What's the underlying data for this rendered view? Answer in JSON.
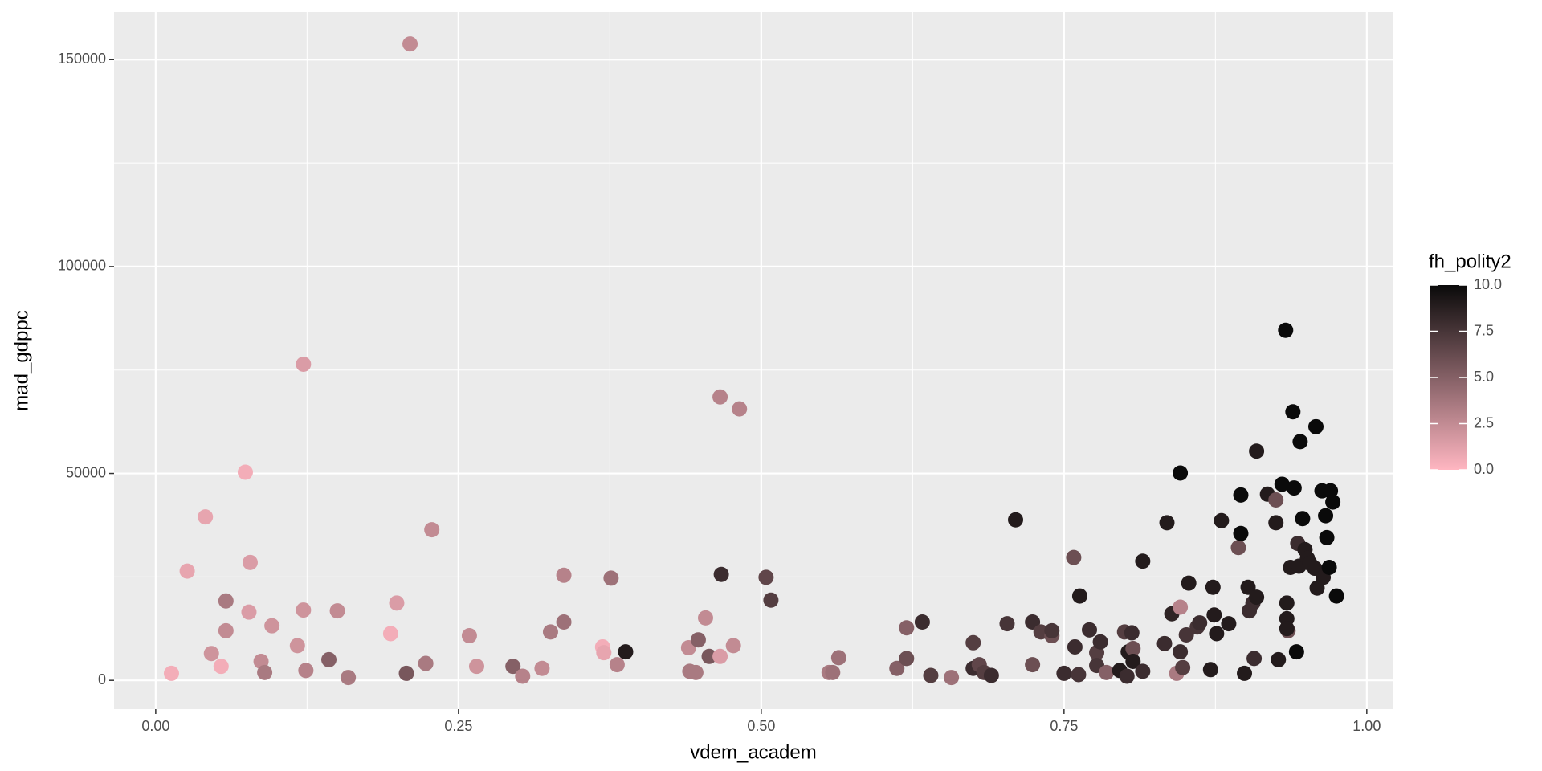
{
  "chart_data": {
    "type": "scatter",
    "x_label": "vdem_academ",
    "y_label": "mad_gdppc",
    "legend_title": "fh_polity2",
    "x": [
      0.013,
      0.026,
      0.041,
      0.046,
      0.054,
      0.058,
      0.058,
      0.074,
      0.078,
      0.077,
      0.087,
      0.09,
      0.096,
      0.117,
      0.122,
      0.122,
      0.124,
      0.143,
      0.15,
      0.159,
      0.194,
      0.199,
      0.207,
      0.21,
      0.223,
      0.228,
      0.259,
      0.265,
      0.295,
      0.303,
      0.319,
      0.326,
      0.337,
      0.337,
      0.369,
      0.37,
      0.376,
      0.381,
      0.388,
      0.44,
      0.441,
      0.446,
      0.448,
      0.454,
      0.457,
      0.466,
      0.466,
      0.467,
      0.477,
      0.482,
      0.504,
      0.508,
      0.556,
      0.559,
      0.564,
      0.612,
      0.62,
      0.62,
      0.633,
      0.64,
      0.657,
      0.675,
      0.675,
      0.68,
      0.684,
      0.69,
      0.703,
      0.71,
      0.724,
      0.724,
      0.731,
      0.74,
      0.74,
      0.75,
      0.758,
      0.759,
      0.762,
      0.763,
      0.771,
      0.777,
      0.78,
      0.777,
      0.785,
      0.796,
      0.8,
      0.802,
      0.803,
      0.806,
      0.807,
      0.807,
      0.815,
      0.815,
      0.833,
      0.835,
      0.839,
      0.843,
      0.846,
      0.846,
      0.846,
      0.848,
      0.851,
      0.853,
      0.86,
      0.862,
      0.871,
      0.873,
      0.874,
      0.876,
      0.88,
      0.886,
      0.894,
      0.896,
      0.896,
      0.899,
      0.902,
      0.903,
      0.906,
      0.907,
      0.909,
      0.909,
      0.918,
      0.925,
      0.925,
      0.927,
      0.93,
      0.933,
      0.934,
      0.934,
      0.935,
      0.934,
      0.937,
      0.939,
      0.94,
      0.942,
      0.943,
      0.944,
      0.945,
      0.947,
      0.949,
      0.951,
      0.953,
      0.957,
      0.958,
      0.959,
      0.963,
      0.964,
      0.966,
      0.967,
      0.969,
      0.97,
      0.972,
      0.975
    ],
    "values": [
      1700,
      26400,
      39500,
      6500,
      3400,
      19200,
      12000,
      50300,
      28500,
      16500,
      4600,
      1900,
      13200,
      8400,
      76400,
      17000,
      2400,
      5000,
      16800,
      700,
      11300,
      18700,
      1700,
      153800,
      4100,
      36400,
      10800,
      3400,
      3400,
      1000,
      2900,
      11700,
      14100,
      25400,
      8100,
      6700,
      24700,
      3800,
      6900,
      7900,
      2200,
      1900,
      9800,
      15100,
      5800,
      5800,
      68500,
      25600,
      8400,
      65600,
      24900,
      19400,
      1900,
      1900,
      5500,
      2900,
      5300,
      12700,
      14100,
      1200,
      700,
      2900,
      9100,
      3800,
      1900,
      1200,
      13700,
      38800,
      3800,
      14100,
      11700,
      10800,
      12000,
      1700,
      29700,
      8100,
      1400,
      20400,
      12200,
      6700,
      9300,
      3600,
      1900,
      2400,
      11700,
      1000,
      6900,
      11500,
      7700,
      4600,
      28800,
      2200,
      8900,
      38100,
      16100,
      1700,
      17700,
      6900,
      50100,
      3100,
      11000,
      23500,
      12900,
      13900,
      2600,
      22500,
      15800,
      11300,
      38600,
      13700,
      32100,
      35500,
      44800,
      1700,
      22500,
      16800,
      18700,
      5300,
      20100,
      55400,
      45000,
      43600,
      38100,
      5000,
      47400,
      84600,
      18700,
      14900,
      12000,
      12500,
      27300,
      64900,
      46500,
      6900,
      33100,
      27600,
      57700,
      39100,
      31600,
      29500,
      28300,
      27100,
      61300,
      22300,
      45800,
      24900,
      39800,
      34500,
      27300,
      45800,
      43100,
      20400
    ],
    "fill_values": [
      0.5,
      1,
      1,
      2,
      0.5,
      3.5,
      2.5,
      0.5,
      1.5,
      1.5,
      2.5,
      3.5,
      2,
      2,
      1.5,
      2,
      3,
      5,
      2.5,
      3.5,
      0.5,
      1.5,
      5.5,
      2.5,
      3.5,
      2.5,
      2.5,
      2,
      5,
      3,
      2.5,
      3.5,
      4,
      3,
      0.5,
      1,
      4,
      3,
      9,
      2.5,
      3.5,
      3.5,
      5,
      2.5,
      5.5,
      1.5,
      3,
      8,
      2.5,
      3,
      6.5,
      7,
      3.5,
      4,
      4,
      5,
      6,
      5,
      8,
      7,
      4,
      8,
      7,
      6.5,
      7,
      8,
      7.5,
      9,
      6,
      8,
      7,
      6,
      7.5,
      8,
      6,
      8,
      7.5,
      9,
      8,
      7,
      8,
      7.5,
      5,
      9,
      7,
      8,
      9,
      8,
      6,
      9,
      9,
      8,
      8,
      9,
      8.5,
      3.5,
      3,
      8,
      10,
      7,
      7.5,
      9,
      7.5,
      8,
      9,
      9,
      9,
      9,
      9,
      9,
      6,
      10,
      10,
      9,
      9,
      8,
      8,
      8,
      9,
      9,
      9,
      6,
      9,
      9,
      10,
      10,
      9,
      9,
      6,
      9,
      9,
      10,
      10,
      10,
      8,
      9,
      10,
      10,
      9,
      9,
      9,
      9,
      10,
      9,
      10,
      9,
      10,
      10,
      10,
      10,
      10,
      10
    ],
    "color_low": "#ffb6c1",
    "color_high": "#0a0a0a",
    "xlim": [
      -0.0344,
      1.022
    ],
    "ylim": [
      -6950,
      161500
    ],
    "clim": [
      0,
      10
    ],
    "xticks": [
      {
        "value": 0,
        "label": "0.00"
      },
      {
        "value": 0.25,
        "label": "0.25"
      },
      {
        "value": 0.5,
        "label": "0.50"
      },
      {
        "value": 0.75,
        "label": "0.75"
      },
      {
        "value": 1,
        "label": "1.00"
      }
    ],
    "yticks": [
      0,
      50000,
      100000,
      150000
    ],
    "cticks": [
      {
        "value": 0,
        "label": "0.0"
      },
      {
        "value": 2.5,
        "label": "2.5"
      },
      {
        "value": 5,
        "label": "5.0"
      },
      {
        "value": 7.5,
        "label": "7.5"
      },
      {
        "value": 10,
        "label": "10.0"
      }
    ],
    "grid": true
  }
}
